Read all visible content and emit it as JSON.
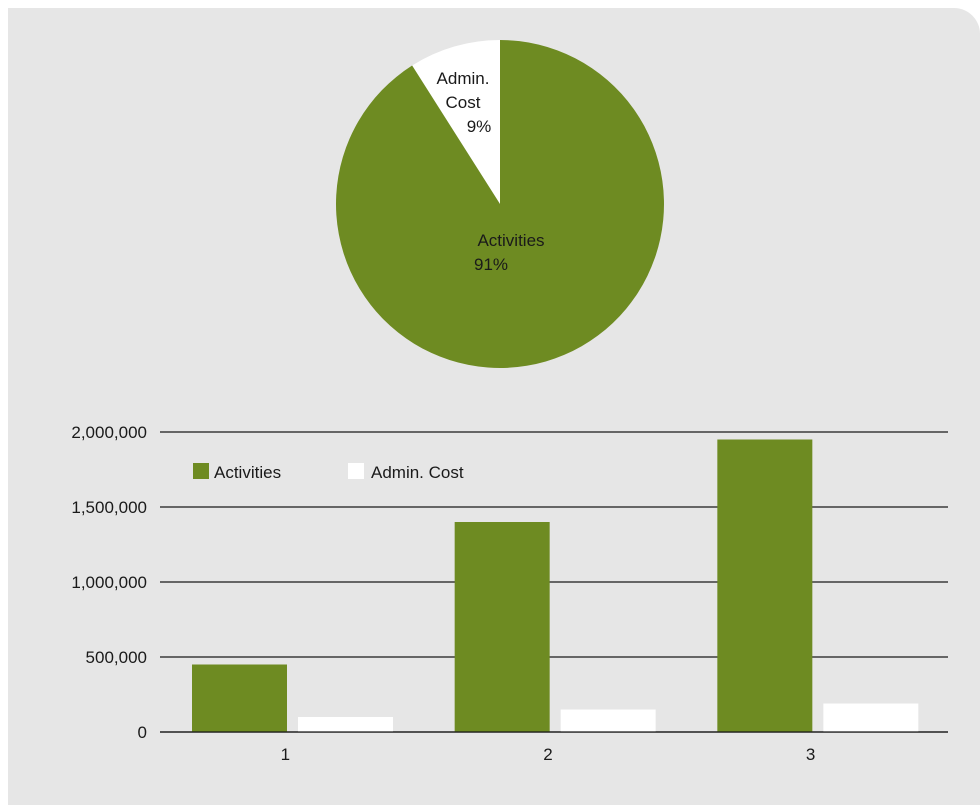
{
  "colors": {
    "activities": "#6e8b22",
    "admin": "#ffffff",
    "grid": "#1a1a1a",
    "panel": "#e6e6e6"
  },
  "chart_data": [
    {
      "type": "pie",
      "slices": [
        {
          "label": "Admin.",
          "label2": "Cost",
          "value": 9,
          "pct_label": "9%",
          "color": "#ffffff"
        },
        {
          "label": "Activities",
          "label2": "",
          "value": 91,
          "pct_label": "91%",
          "color": "#6e8b22"
        }
      ]
    },
    {
      "type": "bar",
      "categories": [
        "1",
        "2",
        "3"
      ],
      "series": [
        {
          "name": "Activities",
          "values": [
            450000,
            1400000,
            1950000
          ],
          "color": "#6e8b22"
        },
        {
          "name": "Admin. Cost",
          "values": [
            100000,
            150000,
            190000
          ],
          "color": "#ffffff"
        }
      ],
      "ylim": [
        0,
        2000000
      ],
      "yticks": [
        0,
        500000,
        1000000,
        1500000,
        2000000
      ],
      "ytick_labels": [
        "0",
        "500,000",
        "1,000,000",
        "1,500,000",
        "2,000,000"
      ],
      "legend": "top-left",
      "grid": true
    }
  ]
}
